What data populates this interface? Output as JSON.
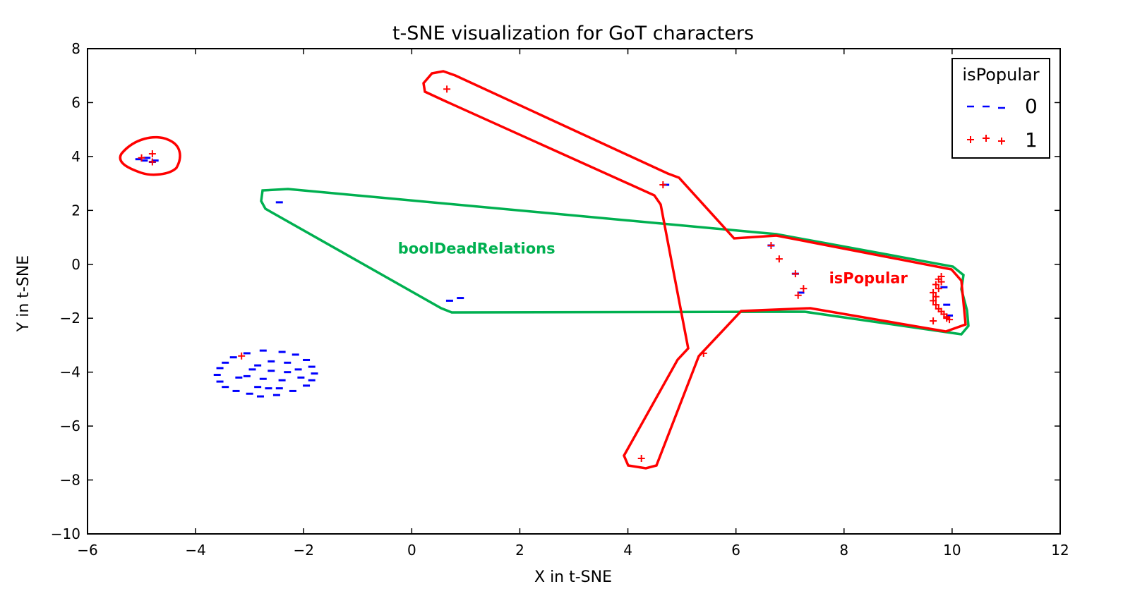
{
  "chart_data": {
    "type": "scatter",
    "title": "t-SNE visualization for GoT characters",
    "xlabel": "X in t-SNE",
    "ylabel": "Y in t-SNE",
    "xlim": [
      -6,
      12
    ],
    "ylim": [
      -10,
      8
    ],
    "xticks": [
      -6,
      -4,
      -2,
      0,
      2,
      4,
      6,
      8,
      10,
      12
    ],
    "yticks": [
      -10,
      -8,
      -6,
      -4,
      -2,
      0,
      2,
      4,
      6,
      8
    ],
    "grid": false,
    "legend": {
      "title": "isPopular",
      "placement": "top-right",
      "entries": [
        {
          "label": "0",
          "color": "#0000ff",
          "marker": "dash"
        },
        {
          "label": "1",
          "color": "#ff0000",
          "marker": "plus"
        }
      ]
    },
    "series": [
      {
        "name": "0",
        "color": "#0000ff",
        "marker": "dash",
        "points": [
          [
            -5.05,
            3.9
          ],
          [
            -4.95,
            3.85
          ],
          [
            -4.8,
            3.8
          ],
          [
            -4.75,
            3.85
          ],
          [
            -4.9,
            3.95
          ],
          [
            4.7,
            2.95
          ],
          [
            -2.45,
            2.3
          ],
          [
            0.7,
            -1.35
          ],
          [
            0.9,
            -1.25
          ],
          [
            6.65,
            0.7
          ],
          [
            7.1,
            -0.35
          ],
          [
            7.2,
            -1.05
          ],
          [
            9.85,
            -0.85
          ],
          [
            9.9,
            -1.5
          ],
          [
            9.95,
            -1.9
          ],
          [
            -2.75,
            -3.2
          ],
          [
            -2.4,
            -3.25
          ],
          [
            -2.15,
            -3.35
          ],
          [
            -1.95,
            -3.55
          ],
          [
            -1.85,
            -3.8
          ],
          [
            -1.8,
            -4.05
          ],
          [
            -1.85,
            -4.3
          ],
          [
            -1.95,
            -4.5
          ],
          [
            -2.2,
            -4.7
          ],
          [
            -2.5,
            -4.85
          ],
          [
            -2.8,
            -4.9
          ],
          [
            -3.0,
            -4.8
          ],
          [
            -3.25,
            -4.7
          ],
          [
            -3.45,
            -4.55
          ],
          [
            -3.55,
            -4.35
          ],
          [
            -3.6,
            -4.1
          ],
          [
            -3.55,
            -3.85
          ],
          [
            -3.45,
            -3.65
          ],
          [
            -3.3,
            -3.45
          ],
          [
            -3.05,
            -3.3
          ],
          [
            -2.6,
            -3.6
          ],
          [
            -2.3,
            -3.65
          ],
          [
            -2.85,
            -3.75
          ],
          [
            -2.95,
            -3.9
          ],
          [
            -2.6,
            -3.95
          ],
          [
            -2.3,
            -4.0
          ],
          [
            -3.05,
            -4.15
          ],
          [
            -2.75,
            -4.25
          ],
          [
            -2.4,
            -4.3
          ],
          [
            -2.05,
            -4.2
          ],
          [
            -2.65,
            -4.6
          ],
          [
            -2.45,
            -4.6
          ],
          [
            -2.85,
            -4.55
          ],
          [
            -3.2,
            -4.2
          ],
          [
            -2.1,
            -3.9
          ]
        ]
      },
      {
        "name": "1",
        "color": "#ff0000",
        "marker": "plus",
        "points": [
          [
            -5.0,
            3.95
          ],
          [
            -4.8,
            4.1
          ],
          [
            -4.8,
            3.8
          ],
          [
            0.65,
            6.5
          ],
          [
            4.65,
            2.95
          ],
          [
            5.4,
            -3.3
          ],
          [
            4.25,
            -7.2
          ],
          [
            -3.15,
            -3.4
          ],
          [
            6.65,
            0.7
          ],
          [
            6.8,
            0.2
          ],
          [
            7.1,
            -0.35
          ],
          [
            7.25,
            -0.9
          ],
          [
            7.15,
            -1.15
          ],
          [
            9.75,
            -0.55
          ],
          [
            9.8,
            -0.65
          ],
          [
            9.7,
            -0.75
          ],
          [
            9.75,
            -0.9
          ],
          [
            9.65,
            -1.05
          ],
          [
            9.7,
            -1.2
          ],
          [
            9.65,
            -1.35
          ],
          [
            9.7,
            -1.5
          ],
          [
            9.75,
            -1.65
          ],
          [
            9.8,
            -1.75
          ],
          [
            9.85,
            -1.85
          ],
          [
            9.9,
            -1.95
          ],
          [
            9.95,
            -2.05
          ],
          [
            9.65,
            -2.1
          ],
          [
            9.8,
            -0.45
          ],
          [
            9.9,
            -2.0
          ]
        ]
      }
    ],
    "annotations": [
      {
        "text": "boolDeadRelations",
        "x": 1.2,
        "y": 0.4,
        "color": "#00b050"
      },
      {
        "text": "isPopular",
        "x": 8.45,
        "y": -0.7,
        "color": "#ff0000"
      }
    ]
  }
}
